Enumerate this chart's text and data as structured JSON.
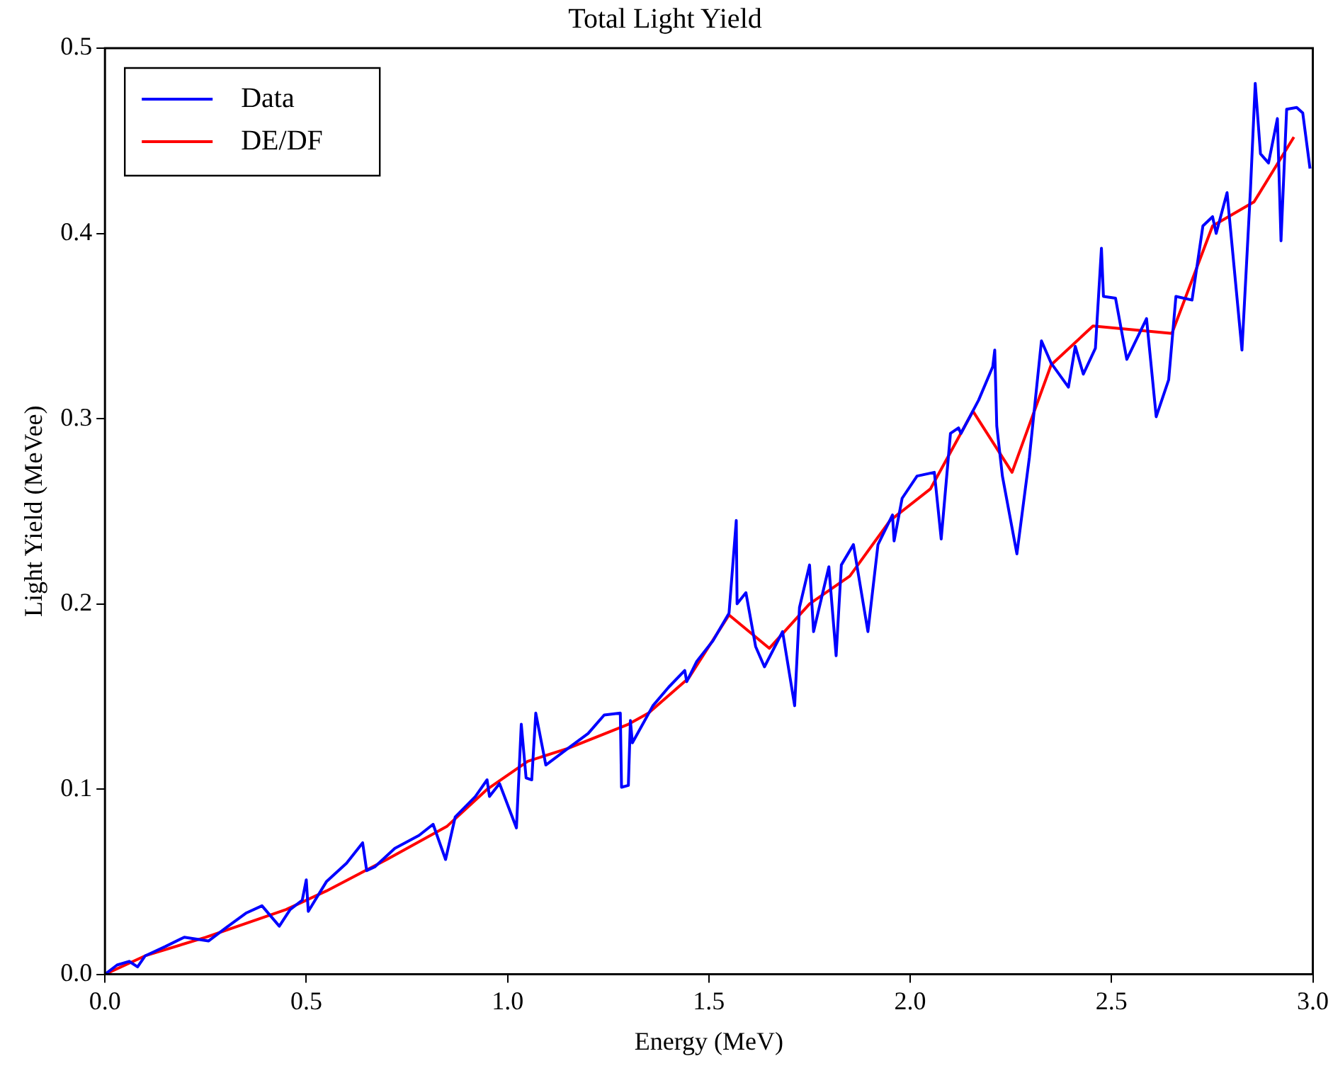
{
  "chart_data": {
    "type": "line",
    "title": "Total Light Yield",
    "xlabel": "Energy (MeV)",
    "ylabel": "Light Yield (MeVee)",
    "xlim": [
      0,
      3
    ],
    "ylim": [
      0,
      0.5
    ],
    "xticks": [
      {
        "value": 0,
        "label": "0.0"
      },
      {
        "value": 0.5,
        "label": "0.5"
      },
      {
        "value": 1,
        "label": "1.0"
      },
      {
        "value": 1.5,
        "label": "1.5"
      },
      {
        "value": 2,
        "label": "2.0"
      },
      {
        "value": 2.5,
        "label": "2.5"
      },
      {
        "value": 3,
        "label": "3.0"
      }
    ],
    "yticks": [
      {
        "value": 0,
        "label": "0.0"
      },
      {
        "value": 0.1,
        "label": "0.1"
      },
      {
        "value": 0.2,
        "label": "0.2"
      },
      {
        "value": 0.3,
        "label": "0.3"
      },
      {
        "value": 0.4,
        "label": "0.4"
      },
      {
        "value": 0.5,
        "label": "0.5"
      }
    ],
    "grid": false,
    "legend": "top left",
    "marker": "none",
    "line_style": "solid",
    "series": [
      {
        "name": "Data",
        "color": "#0000ff",
        "x": [
          0,
          0.03,
          0.06,
          0.081,
          0.1,
          0.15,
          0.197,
          0.257,
          0.3,
          0.35,
          0.39,
          0.433,
          0.46,
          0.49,
          0.5,
          0.505,
          0.55,
          0.6,
          0.64,
          0.65,
          0.67,
          0.72,
          0.78,
          0.815,
          0.846,
          0.87,
          0.92,
          0.949,
          0.955,
          0.98,
          1.022,
          1.034,
          1.046,
          1.06,
          1.07,
          1.095,
          1.15,
          1.2,
          1.24,
          1.28,
          1.283,
          1.3,
          1.305,
          1.31,
          1.361,
          1.4,
          1.44,
          1.445,
          1.47,
          1.51,
          1.55,
          1.568,
          1.57,
          1.592,
          1.616,
          1.638,
          1.683,
          1.713,
          1.725,
          1.75,
          1.76,
          1.798,
          1.816,
          1.829,
          1.859,
          1.895,
          1.92,
          1.956,
          1.96,
          1.98,
          2.017,
          2.06,
          2.077,
          2.1,
          2.12,
          2.126,
          2.17,
          2.205,
          2.21,
          2.215,
          2.229,
          2.265,
          2.296,
          2.326,
          2.35,
          2.393,
          2.41,
          2.43,
          2.46,
          2.475,
          2.48,
          2.51,
          2.538,
          2.587,
          2.611,
          2.642,
          2.66,
          2.7,
          2.727,
          2.751,
          2.76,
          2.787,
          2.824,
          2.845,
          2.857,
          2.87,
          2.89,
          2.912,
          2.921,
          2.935,
          2.96,
          2.975,
          2.993
        ],
        "values": [
          0,
          0.005,
          0.007,
          0.004,
          0.01,
          0.015,
          0.02,
          0.018,
          0.025,
          0.033,
          0.037,
          0.026,
          0.035,
          0.04,
          0.051,
          0.034,
          0.05,
          0.06,
          0.071,
          0.056,
          0.058,
          0.068,
          0.075,
          0.081,
          0.062,
          0.085,
          0.096,
          0.105,
          0.096,
          0.103,
          0.079,
          0.135,
          0.106,
          0.105,
          0.141,
          0.113,
          0.122,
          0.13,
          0.14,
          0.141,
          0.101,
          0.102,
          0.137,
          0.125,
          0.145,
          0.155,
          0.164,
          0.158,
          0.169,
          0.18,
          0.195,
          0.245,
          0.2,
          0.206,
          0.177,
          0.166,
          0.185,
          0.145,
          0.198,
          0.221,
          0.185,
          0.22,
          0.172,
          0.221,
          0.232,
          0.185,
          0.232,
          0.248,
          0.234,
          0.257,
          0.269,
          0.271,
          0.235,
          0.292,
          0.295,
          0.292,
          0.31,
          0.328,
          0.337,
          0.296,
          0.269,
          0.227,
          0.279,
          0.342,
          0.33,
          0.317,
          0.339,
          0.324,
          0.338,
          0.392,
          0.366,
          0.365,
          0.332,
          0.354,
          0.301,
          0.321,
          0.366,
          0.364,
          0.404,
          0.409,
          0.4,
          0.422,
          0.337,
          0.423,
          0.481,
          0.443,
          0.438,
          0.462,
          0.396,
          0.467,
          0.468,
          0.465,
          0.435
        ]
      },
      {
        "name": "DE/DF",
        "color": "#ff0000",
        "x": [
          0,
          0.1,
          0.25,
          0.45,
          0.55,
          0.7,
          0.85,
          0.95,
          1.05,
          1.15,
          1.3,
          1.35,
          1.45,
          1.55,
          1.65,
          1.75,
          1.85,
          1.95,
          2.05,
          2.156,
          2.253,
          2.35,
          2.454,
          2.65,
          2.751,
          2.854,
          2.953
        ],
        "values": [
          0,
          0.01,
          0.02,
          0.035,
          0.045,
          0.062,
          0.08,
          0.1,
          0.115,
          0.122,
          0.135,
          0.141,
          0.16,
          0.194,
          0.176,
          0.2,
          0.215,
          0.245,
          0.262,
          0.304,
          0.271,
          0.329,
          0.35,
          0.346,
          0.404,
          0.417,
          0.452
        ]
      }
    ]
  }
}
